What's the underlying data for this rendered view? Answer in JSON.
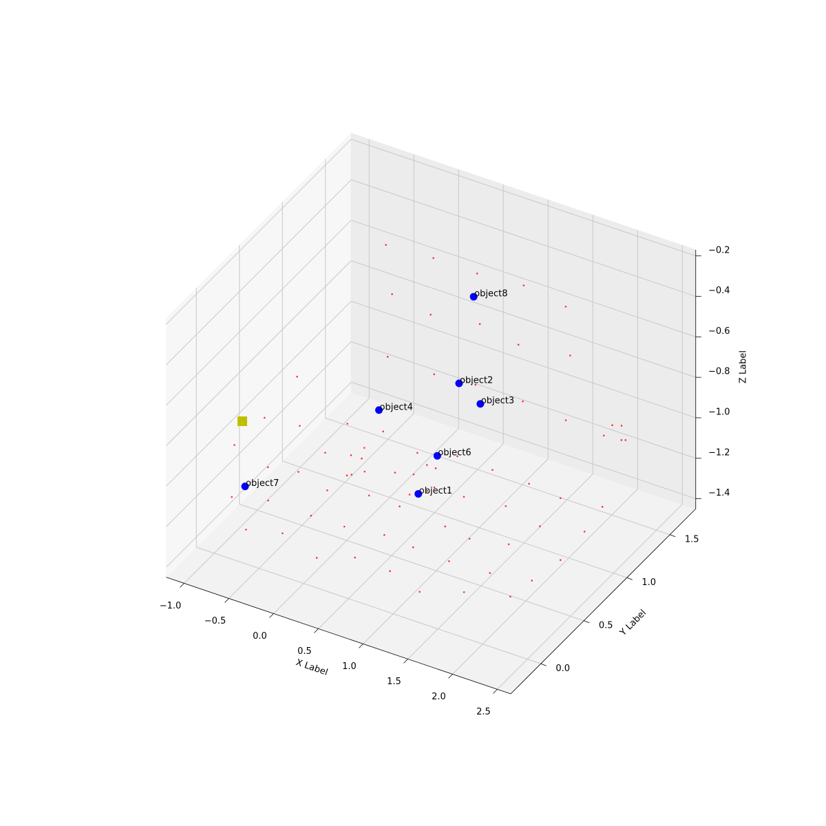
{
  "chart_data": {
    "type": "scatter3d",
    "xlabel": "X Label",
    "ylabel": "Y Label",
    "zlabel": "Z Label",
    "xlim": [
      -1.2,
      2.65
    ],
    "ylim": [
      -0.35,
      1.8
    ],
    "zlim": [
      -1.45,
      -0.17
    ],
    "xticks": [
      {
        "value": -1,
        "label": "−1.0"
      },
      {
        "value": -0.5,
        "label": "−0.5"
      },
      {
        "value": 0,
        "label": "0.0"
      },
      0.5,
      {
        "value": 1,
        "label": "1.0"
      },
      1.5,
      {
        "value": 2,
        "label": "2.0"
      },
      2.5
    ],
    "yticks": [
      {
        "value": 0,
        "label": "0.0"
      },
      0.5,
      {
        "value": 1,
        "label": "1.0"
      },
      1.5
    ],
    "zticks": [
      {
        "value": -0.2,
        "label": "−0.2"
      },
      {
        "value": -0.4,
        "label": "−0.4"
      },
      {
        "value": -0.6,
        "label": "−0.6"
      },
      {
        "value": -0.8,
        "label": "−0.8"
      },
      {
        "value": -1.0,
        "label": "−1.0"
      },
      {
        "value": -1.2,
        "label": "−1.2"
      },
      {
        "value": -1.4,
        "label": "−1.4"
      }
    ],
    "grid": true,
    "cloud": {
      "color": "#ff0000",
      "x": [
        -0.78,
        -0.41,
        0.03,
        0.38,
        0.82,
        1.19,
        1.58,
        2.02,
        -0.82,
        -0.37,
        0.05,
        0.42,
        0.78,
        1.23,
        1.62,
        2.05,
        -0.79,
        -0.43,
        -0.02,
        0.36,
        0.84,
        1.18,
        1.57,
        2.1,
        -0.76,
        -0.39,
        0.04,
        0.44,
        0.8,
        1.21,
        1.63,
        2.08,
        -0.8,
        -0.42,
        0.01,
        0.39,
        0.83,
        1.2,
        1.6,
        2.04,
        -0.6,
        -0.1,
        0.4,
        0.9,
        1.4,
        -0.58,
        -0.12,
        0.42,
        0.88,
        1.42,
        -0.62,
        -0.08,
        0.38,
        0.92,
        1.38,
        -0.9,
        -0.88,
        -0.91,
        -0.89,
        -0.9,
        -0.92,
        0.0,
        0.1,
        0.2,
        0.05,
        0.15,
        0.7,
        0.8,
        0.9,
        0.75,
        0.85,
        2.2,
        2.3,
        2.25,
        2.35,
        2.15
      ],
      "y": [
        0.14,
        0.18,
        0.12,
        0.2,
        0.15,
        0.11,
        0.22,
        0.3,
        0.44,
        0.47,
        0.42,
        0.5,
        0.46,
        0.41,
        0.48,
        0.52,
        0.76,
        0.72,
        0.78,
        0.74,
        0.77,
        0.7,
        0.75,
        0.8,
        1.04,
        1.08,
        1.02,
        1.06,
        1.03,
        1.09,
        1.05,
        1.1,
        1.34,
        1.36,
        1.31,
        1.38,
        1.33,
        1.37,
        1.32,
        1.35,
        1.6,
        1.62,
        1.58,
        1.61,
        1.59,
        1.63,
        1.6,
        1.61,
        1.58,
        1.62,
        1.6,
        1.59,
        1.62,
        1.6,
        1.61,
        0.1,
        0.5,
        0.9,
        0.12,
        0.48,
        0.88,
        0.55,
        0.6,
        0.5,
        0.45,
        0.4,
        0.55,
        0.6,
        0.5,
        0.45,
        0.65,
        1.2,
        1.3,
        1.4,
        1.25,
        1.35
      ],
      "z": [
        -1.36,
        -1.34,
        -1.37,
        -1.35,
        -1.33,
        -1.36,
        -1.35,
        -1.34,
        -1.35,
        -1.37,
        -1.34,
        -1.36,
        -1.35,
        -1.33,
        -1.36,
        -1.35,
        -1.34,
        -1.36,
        -1.35,
        -1.33,
        -1.37,
        -1.35,
        -1.34,
        -1.36,
        -1.36,
        -1.35,
        -1.33,
        -1.36,
        -1.34,
        -1.35,
        -1.37,
        -1.35,
        -1.35,
        -1.34,
        -1.36,
        -1.35,
        -1.33,
        -1.36,
        -1.35,
        -1.34,
        -1.1,
        -1.12,
        -1.08,
        -1.1,
        -1.11,
        -0.8,
        -0.82,
        -0.79,
        -0.81,
        -0.8,
        -0.55,
        -0.53,
        -0.55,
        -0.52,
        -0.56,
        -1.2,
        -1.22,
        -1.19,
        -0.95,
        -0.97,
        -0.94,
        -1.05,
        -1.02,
        -1.08,
        -1.1,
        -1.06,
        -1.04,
        -1.0,
        -1.07,
        -1.09,
        -1.03,
        -0.9,
        -0.95,
        -1.0,
        -0.85,
        -0.92
      ]
    },
    "objects": {
      "color": "#0000ff",
      "labels": [
        "object1",
        "object2",
        "object3",
        "object4",
        "object6",
        "object7",
        "object8"
      ],
      "x": [
        0.8,
        0.64,
        0.82,
        0.11,
        0.81,
        -0.54,
        0.63
      ],
      "y": [
        0.5,
        1.14,
        1.2,
        0.76,
        0.71,
        -0.12,
        1.32
      ],
      "z": [
        -1.1,
        -0.85,
        -0.95,
        -0.9,
        -1.0,
        -1.0,
        -0.5
      ]
    },
    "marker": {
      "color": "#bfbf00",
      "x": -0.6,
      "y": -0.09,
      "z": -0.7
    }
  }
}
